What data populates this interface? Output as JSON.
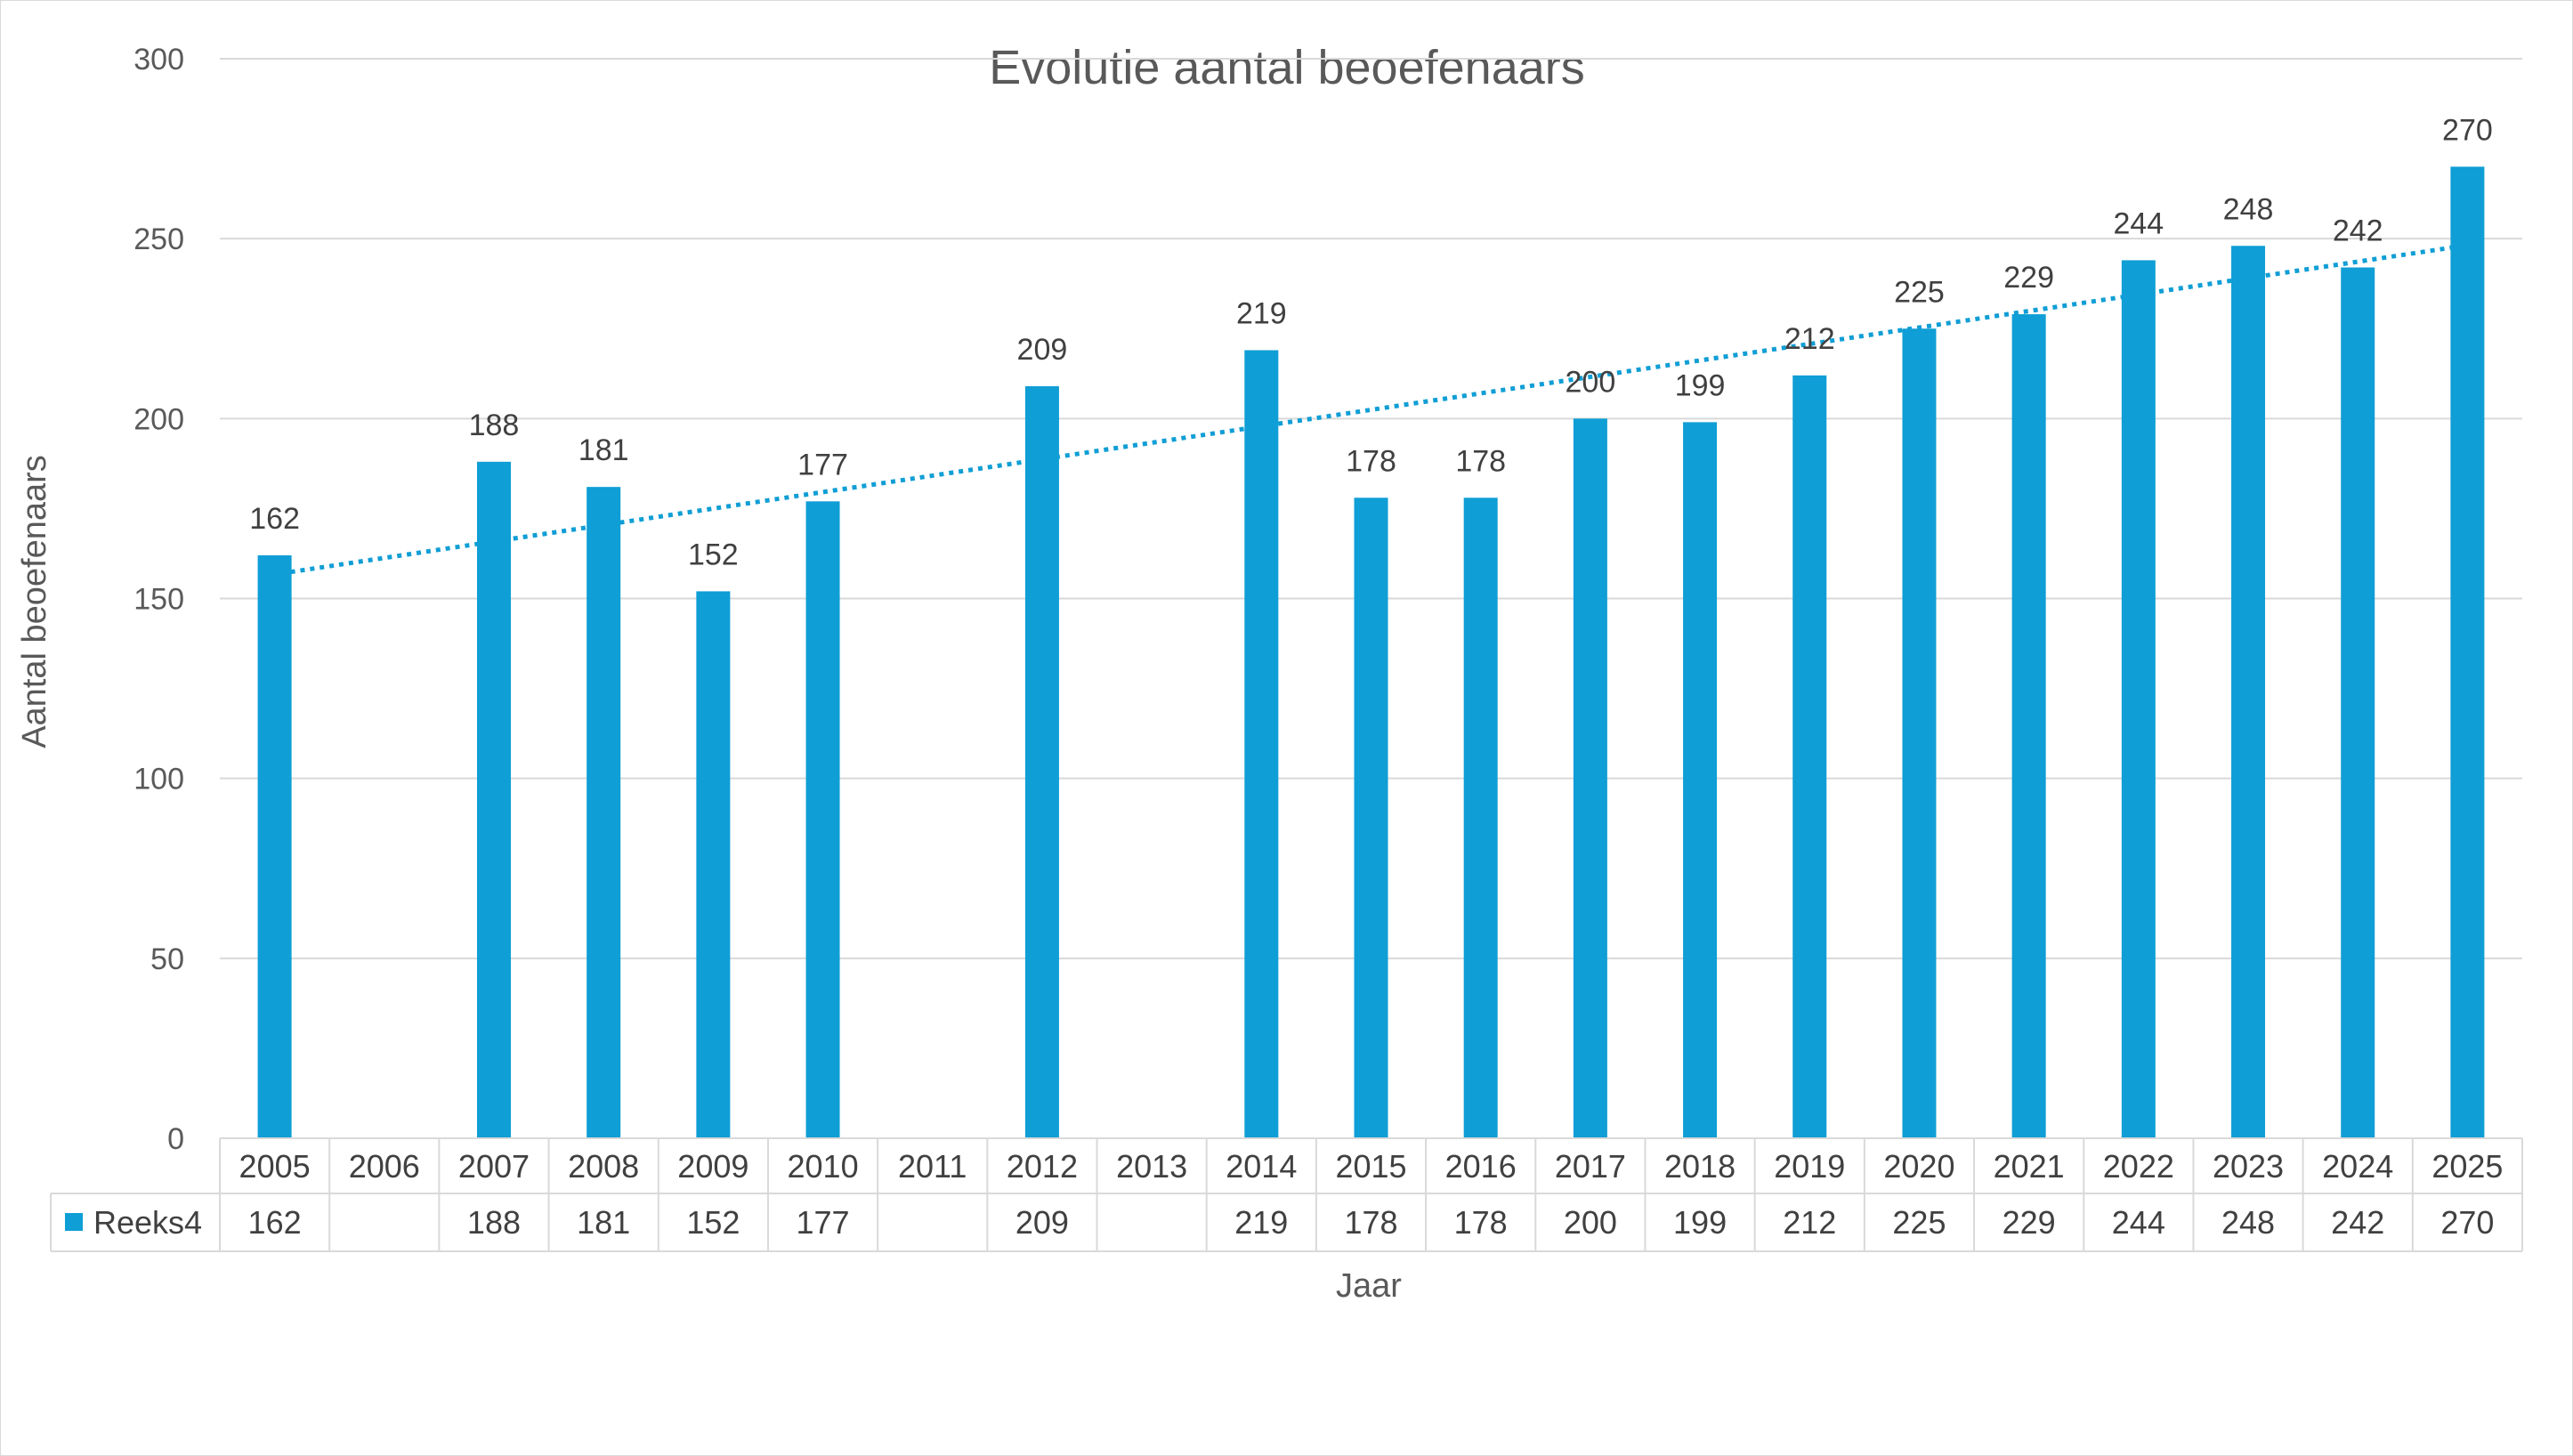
{
  "chart_data": {
    "type": "bar",
    "title": "Evolutie aantal beoefenaars",
    "xlabel": "Jaar",
    "ylabel": "Aantal beoefenaars",
    "ylim": [
      0,
      300
    ],
    "yticks": [
      0,
      50,
      100,
      150,
      200,
      250,
      300
    ],
    "grid": true,
    "categories": [
      "2005",
      "2006",
      "2007",
      "2008",
      "2009",
      "2010",
      "2011",
      "2012",
      "2013",
      "2014",
      "2015",
      "2016",
      "2017",
      "2018",
      "2019",
      "2020",
      "2021",
      "2022",
      "2023",
      "2024",
      "2025"
    ],
    "series": [
      {
        "name": "Reeks4",
        "color": "#0f9ed5",
        "values": [
          162,
          null,
          188,
          181,
          152,
          177,
          null,
          209,
          null,
          219,
          178,
          178,
          200,
          199,
          212,
          225,
          229,
          244,
          248,
          242,
          270
        ]
      }
    ],
    "trendline": {
      "type": "linear",
      "style": "dotted",
      "color": "#0f9ed5"
    },
    "data_table": true
  }
}
